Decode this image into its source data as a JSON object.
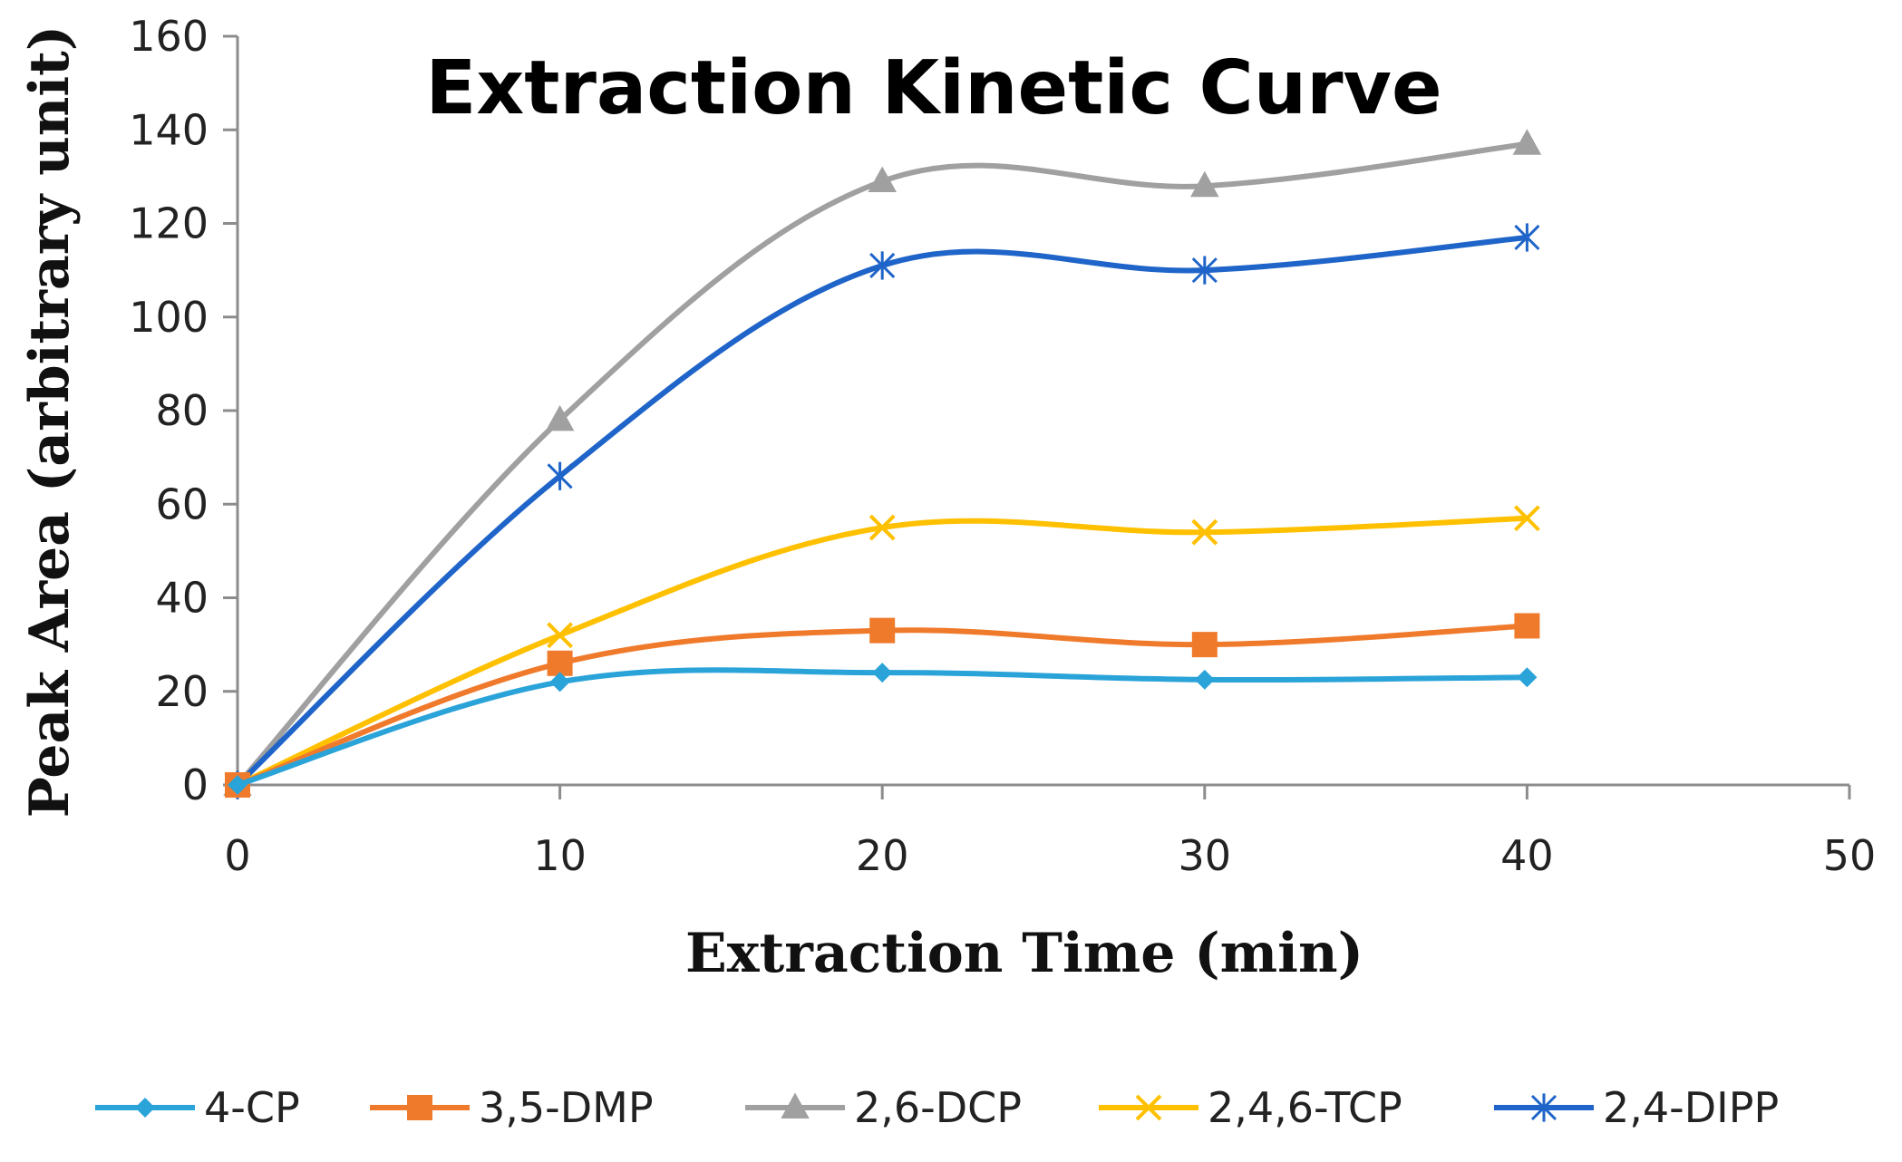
{
  "chart_data": {
    "type": "line",
    "title": "Extraction Kinetic Curve",
    "xlabel": "Extraction Time (min)",
    "ylabel": "Peak Area (arbitrary unit)",
    "xlim": [
      0,
      50
    ],
    "ylim": [
      0,
      160
    ],
    "xticks": [
      "0",
      "10",
      "20",
      "30",
      "40",
      "50"
    ],
    "yticks": [
      "0",
      "20",
      "40",
      "60",
      "80",
      "100",
      "120",
      "140",
      "160"
    ],
    "grid": false,
    "legend_position": "bottom",
    "x": [
      0,
      10,
      20,
      30,
      40
    ],
    "series": [
      {
        "name": "4-CP",
        "values": [
          0,
          22,
          24,
          22.5,
          23
        ],
        "color": "#2aa3d9",
        "marker": "diamond"
      },
      {
        "name": "3,5-DMP",
        "values": [
          0,
          26,
          33,
          30,
          34
        ],
        "color": "#f07a2c",
        "marker": "square"
      },
      {
        "name": "2,6-DCP",
        "values": [
          0,
          78,
          129,
          128,
          137
        ],
        "color": "#a0a0a0",
        "marker": "triangle"
      },
      {
        "name": "2,4,6-TCP",
        "values": [
          0,
          32,
          55,
          54,
          57
        ],
        "color": "#ffc000",
        "marker": "x"
      },
      {
        "name": "2,4-DIPP",
        "values": [
          0,
          66,
          111,
          110,
          117
        ],
        "color": "#1f64c8",
        "marker": "star"
      }
    ]
  }
}
